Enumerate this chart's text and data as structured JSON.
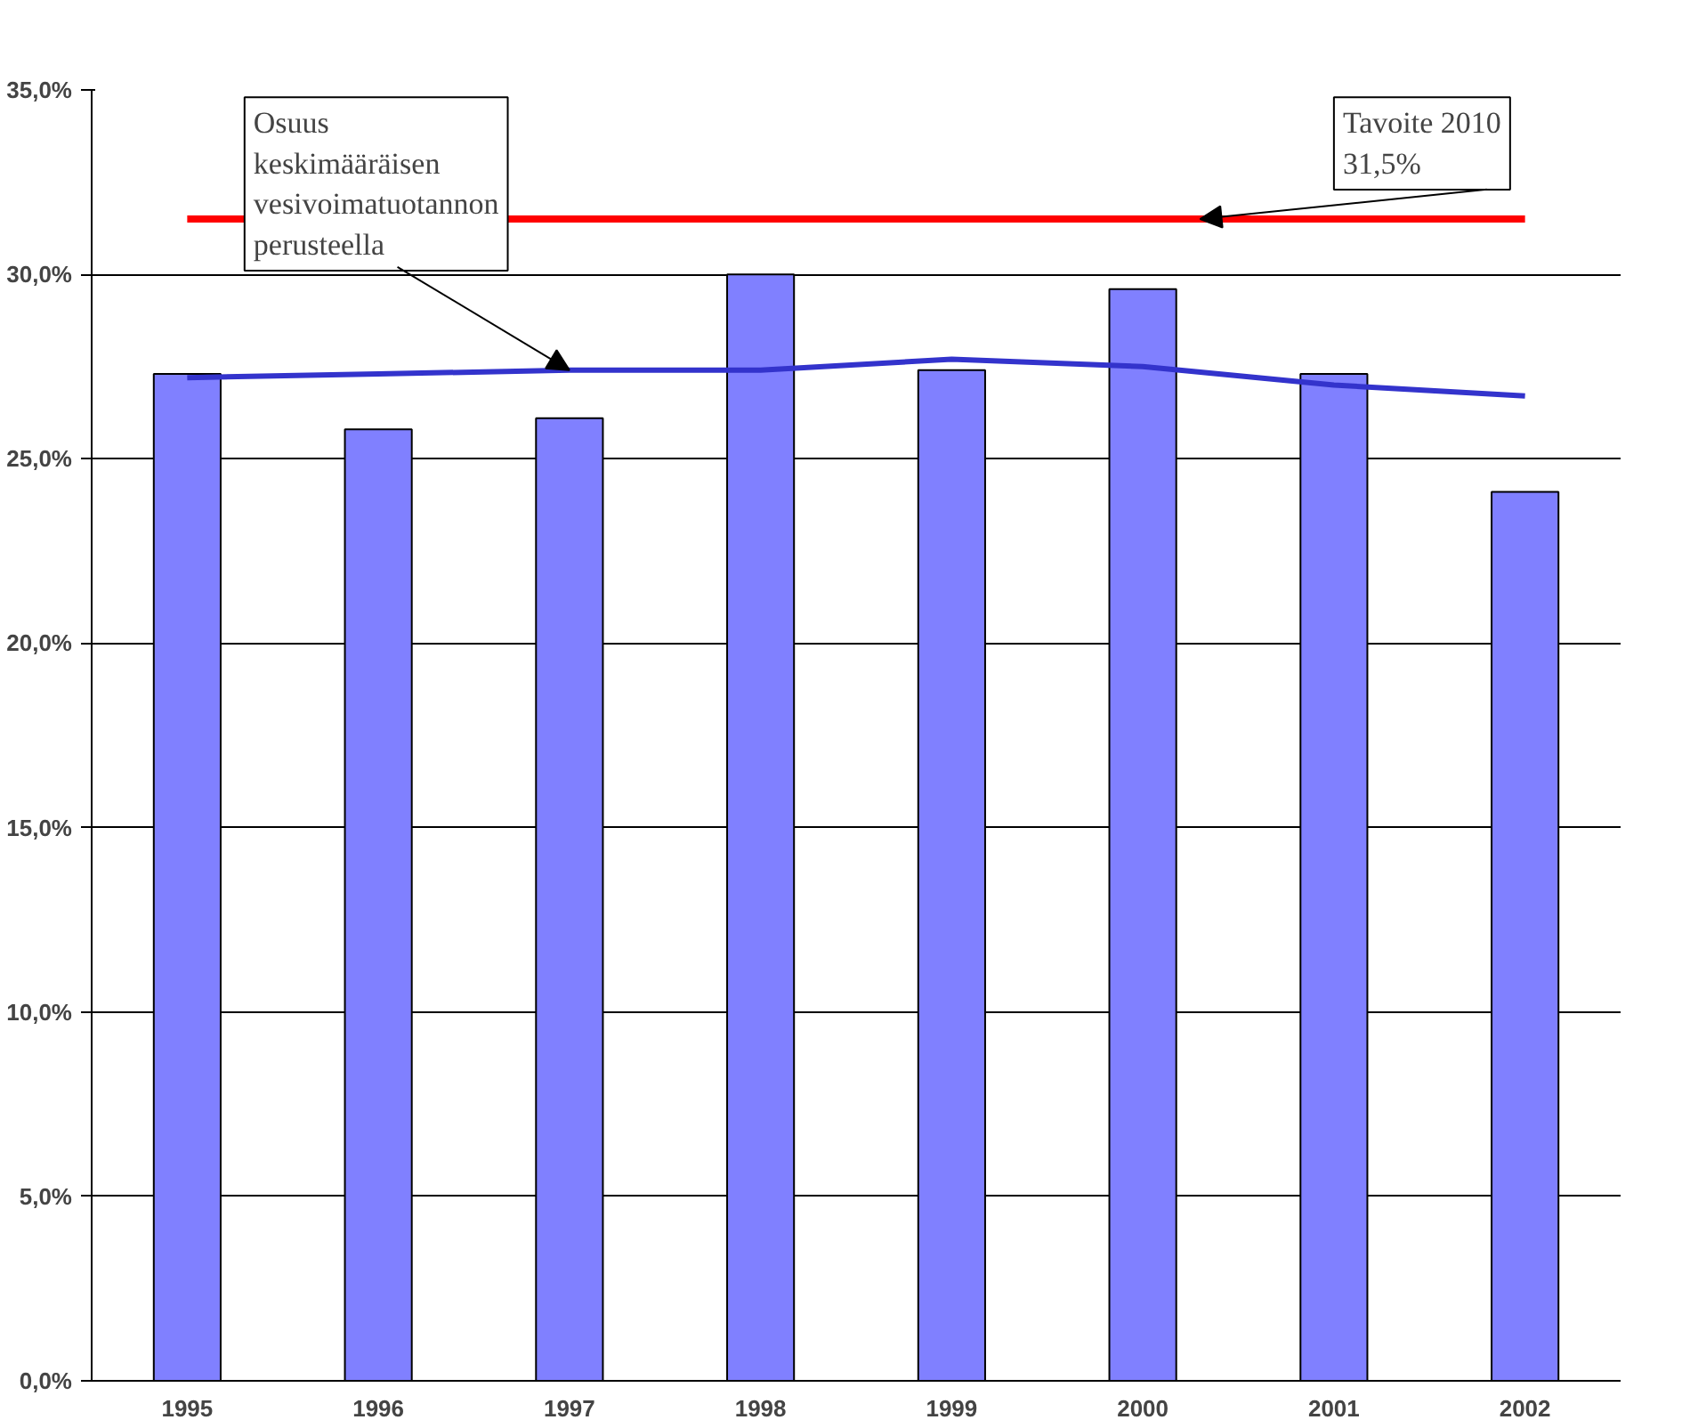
{
  "chart_data": {
    "type": "bar",
    "categories": [
      "1995",
      "1996",
      "1997",
      "1998",
      "1999",
      "2000",
      "2001",
      "2002"
    ],
    "series": [
      {
        "color": "#8080ff",
        "values": [
          27.3,
          25.8,
          26.1,
          30.0,
          27.4,
          29.6,
          27.3,
          24.1
        ]
      },
      {
        "type": "line",
        "color": "#3333cc",
        "values": [
          27.2,
          27.3,
          27.4,
          27.4,
          27.7,
          27.5,
          27.0,
          26.7
        ]
      }
    ],
    "ylim": [
      0,
      35
    ],
    "yticks": [
      {
        "value": 0,
        "label": "0,0%"
      },
      {
        "value": 5,
        "label": "5,0%"
      },
      {
        "value": 10,
        "label": "10,0%"
      },
      {
        "value": 15,
        "label": "15,0%"
      },
      {
        "value": 20,
        "label": "20,0%"
      },
      {
        "value": 25,
        "label": "25,0%"
      },
      {
        "value": 30,
        "label": "30,0%"
      },
      {
        "value": 35,
        "label": "35,0%"
      }
    ],
    "ref_lines": [
      {
        "axis": "y",
        "value": 31.5,
        "label": "Tavoite 2010\n31,5%",
        "color": "#ff0000"
      }
    ],
    "annotations": [
      {
        "text": "Osuus\nkeskimääräisen\nvesivoimatuotannon\nperusteella",
        "x": "1997",
        "y": 27.4
      }
    ],
    "grid": "y"
  }
}
